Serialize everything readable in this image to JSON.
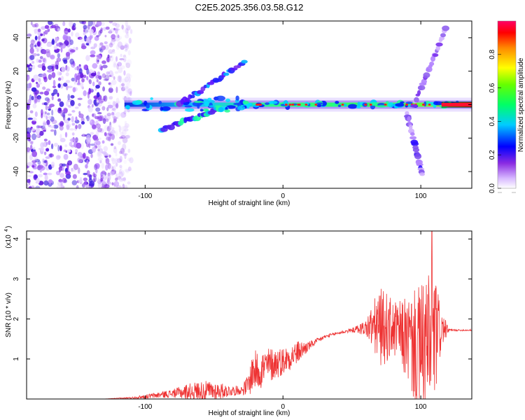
{
  "title": "C2E5.2025.356.03.58.G12",
  "chart_data": [
    {
      "type": "heatmap",
      "xlabel": "Height of straight line (km)",
      "ylabel": "Frequency (Hz)",
      "xlim": [
        -186,
        137
      ],
      "ylim": [
        -50,
        50
      ],
      "xticks": [
        "-100",
        "0",
        "100"
      ],
      "xtick_values": [
        -100,
        0,
        100
      ],
      "yticks": [
        "40",
        "20",
        "0",
        "-20",
        "-40"
      ],
      "ytick_values": [
        40,
        20,
        0,
        -20,
        -40
      ],
      "colorbar": {
        "label": "Normalized spectral amplitude",
        "ticks": [
          "0.0",
          "0.2",
          "0.4",
          "0.6",
          "0.8"
        ],
        "tick_values": [
          0,
          0.2,
          0.4,
          0.6,
          0.8
        ],
        "range": [
          0,
          1
        ]
      },
      "features": [
        {
          "name": "noise-region",
          "x_range": [
            -186,
            -110
          ],
          "freq_range": [
            -50,
            50
          ],
          "amplitude": 0.2
        },
        {
          "name": "main-band",
          "x_range": [
            -115,
            137
          ],
          "freq": 0,
          "amplitude_range": [
            0.3,
            0.95
          ]
        },
        {
          "name": "upper-branch",
          "x_start": -75,
          "x_end": -28,
          "freq_start": 0,
          "freq_end": 26,
          "amplitude": 0.2
        },
        {
          "name": "lower-branch",
          "x_start": -88,
          "x_end": -45,
          "freq_start": -15,
          "freq_end": -2,
          "amplitude": 0.22
        },
        {
          "name": "right-streak-up",
          "x_start": 95,
          "x_end": 118,
          "freq_start": 0,
          "freq_end": 45,
          "amplitude": 0.15
        },
        {
          "name": "right-streak-down",
          "x_start": 90,
          "x_end": 101,
          "freq_start": -5,
          "freq_end": -42,
          "amplitude": 0.15
        }
      ]
    },
    {
      "type": "line",
      "xlabel": "Height of straight line (km)",
      "ylabel": "SNR (10 * v/v)",
      "yscale_label": "(x10",
      "yscale_exp": "4",
      "xlim": [
        -186,
        137
      ],
      "ylim": [
        0,
        4.2
      ],
      "xticks": [
        "-100",
        "0",
        "100"
      ],
      "xtick_values": [
        -100,
        0,
        100
      ],
      "yticks": [
        "1",
        "2",
        "3",
        "4"
      ],
      "ytick_values": [
        1,
        2,
        3,
        4
      ],
      "color": "#ee3333",
      "series": [
        {
          "name": "SNR envelope",
          "x": [
            -186,
            -130,
            -110,
            -100,
            -90,
            -80,
            -70,
            -60,
            -50,
            -40,
            -30,
            -25,
            -22,
            -15,
            -10,
            0,
            10,
            20,
            30,
            40,
            50,
            60,
            65,
            70,
            75,
            80,
            85,
            90,
            95,
            100,
            105,
            110,
            115,
            120,
            125,
            137
          ],
          "base": [
            0.0,
            0.0,
            0.03,
            0.06,
            0.1,
            0.14,
            0.18,
            0.2,
            0.2,
            0.2,
            0.22,
            0.35,
            0.7,
            0.75,
            0.85,
            0.95,
            1.15,
            1.35,
            1.55,
            1.65,
            1.72,
            1.78,
            1.8,
            1.8,
            1.78,
            1.75,
            1.65,
            1.5,
            1.3,
            1.2,
            1.3,
            1.5,
            1.75,
            1.72,
            1.72,
            1.72
          ],
          "amp": [
            0.0,
            0.0,
            0.02,
            0.05,
            0.08,
            0.1,
            0.2,
            0.25,
            0.25,
            0.15,
            0.1,
            0.3,
            0.5,
            0.5,
            0.45,
            0.35,
            0.3,
            0.1,
            0.05,
            0.04,
            0.05,
            0.2,
            0.6,
            1.0,
            0.9,
            0.7,
            0.8,
            1.1,
            1.4,
            1.7,
            1.8,
            1.7,
            0.5,
            0.05,
            0.02,
            0.02
          ],
          "peak": 4.2,
          "peak_x": 108
        }
      ]
    }
  ]
}
